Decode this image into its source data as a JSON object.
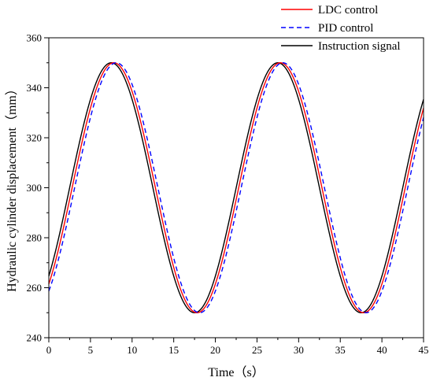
{
  "chart_data": {
    "type": "line",
    "xlabel": "Time（s）",
    "ylabel": "Hydraulic cylinder displacement（mm）",
    "xlim": [
      0,
      45
    ],
    "ylim": [
      240,
      360
    ],
    "xticks": [
      0,
      5,
      10,
      15,
      20,
      25,
      30,
      35,
      40,
      45
    ],
    "yticks": [
      240,
      260,
      280,
      300,
      320,
      340,
      360
    ],
    "grid": false,
    "legend_position": "top-right",
    "period": 20,
    "amplitude": 50,
    "center": 300,
    "series": [
      {
        "name": "LDC control",
        "color": "#ff0000",
        "dash": "solid",
        "phase_lag": 0.3,
        "y_at_0": 261.7,
        "y_at_45": 330.0
      },
      {
        "name": "PID control",
        "color": "#0000ff",
        "dash": "dashed",
        "phase_lag": 0.6,
        "y_at_0": 260.5,
        "y_at_45": 324.0
      },
      {
        "name": "Instruction signal",
        "color": "#000000",
        "dash": "solid",
        "phase_lag": 0.0,
        "y_at_0": 262.8,
        "y_at_45": 335.0
      }
    ]
  }
}
